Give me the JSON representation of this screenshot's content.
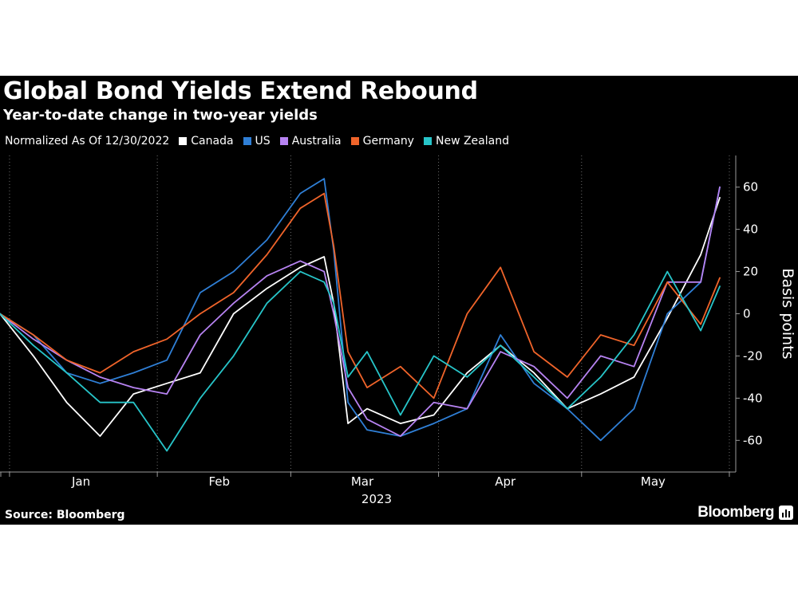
{
  "header": {
    "title": "Global Bond Yields Extend Rebound",
    "subtitle": "Year-to-date change in two-year yields"
  },
  "legend": {
    "note": "Normalized As Of 12/30/2022"
  },
  "footer": {
    "source": "Source: Bloomberg",
    "brand": "Bloomberg"
  },
  "chart_data": {
    "type": "line",
    "title": "Global Bond Yields Extend Rebound",
    "subtitle": "Year-to-date change in two-year yields",
    "ylabel": "Basis points",
    "xlabel": "2023",
    "ylim": [
      -75,
      75
    ],
    "yticks": [
      -60,
      -40,
      -20,
      0,
      20,
      40,
      60
    ],
    "yticklabels": [
      "-60",
      "-40",
      "-20",
      "0",
      "20",
      "40",
      "60"
    ],
    "xlim": [
      "2022-12-30",
      "2023-05-31"
    ],
    "month_labels": [
      "Jan",
      "Feb",
      "Mar",
      "Apr",
      "May"
    ],
    "month_label_dates": [
      "2023-01-16",
      "2023-02-14",
      "2023-03-16",
      "2023-04-15",
      "2023-05-16"
    ],
    "month_boundaries": [
      "2023-01-01",
      "2023-02-01",
      "2023-03-01",
      "2023-04-01",
      "2023-05-01",
      "2023-06-01"
    ],
    "year_label": "2023",
    "grid": "vertical dotted at month boundaries",
    "legend_position": "top-left",
    "x": [
      "2022-12-30",
      "2023-01-06",
      "2023-01-13",
      "2023-01-20",
      "2023-01-27",
      "2023-02-03",
      "2023-02-10",
      "2023-02-17",
      "2023-02-24",
      "2023-03-03",
      "2023-03-08",
      "2023-03-10",
      "2023-03-13",
      "2023-03-17",
      "2023-03-24",
      "2023-03-31",
      "2023-04-07",
      "2023-04-14",
      "2023-04-21",
      "2023-04-28",
      "2023-05-05",
      "2023-05-12",
      "2023-05-19",
      "2023-05-26",
      "2023-05-30"
    ],
    "series": [
      {
        "name": "Canada",
        "color": "#ffffff",
        "values": [
          0,
          -20,
          -42,
          -58,
          -38,
          -33,
          -28,
          0,
          12,
          22,
          27,
          5,
          -52,
          -45,
          -52,
          -48,
          -28,
          -15,
          -28,
          -45,
          -38,
          -30,
          -2,
          28,
          55
        ]
      },
      {
        "name": "US",
        "color": "#2f7fd6",
        "values": [
          0,
          -10,
          -28,
          -33,
          -28,
          -22,
          10,
          20,
          35,
          57,
          64,
          30,
          -42,
          -55,
          -58,
          -52,
          -45,
          -10,
          -33,
          -45,
          -60,
          -45,
          0,
          15,
          60
        ]
      },
      {
        "name": "Australia",
        "color": "#b783f2",
        "values": [
          0,
          -12,
          -22,
          -30,
          -35,
          -38,
          -10,
          5,
          18,
          25,
          20,
          0,
          -35,
          -50,
          -58,
          -42,
          -45,
          -18,
          -25,
          -40,
          -20,
          -25,
          15,
          15,
          60
        ]
      },
      {
        "name": "Germany",
        "color": "#f0642a",
        "values": [
          0,
          -10,
          -22,
          -28,
          -18,
          -12,
          0,
          10,
          28,
          50,
          57,
          32,
          -18,
          -35,
          -25,
          -40,
          0,
          22,
          -18,
          -30,
          -10,
          -15,
          15,
          -5,
          17
        ]
      },
      {
        "name": "New Zealand",
        "color": "#27c5c9",
        "values": [
          0,
          -15,
          -28,
          -42,
          -42,
          -65,
          -40,
          -20,
          5,
          20,
          15,
          5,
          -30,
          -18,
          -48,
          -20,
          -30,
          -15,
          -30,
          -45,
          -30,
          -10,
          20,
          -8,
          13
        ]
      }
    ]
  }
}
